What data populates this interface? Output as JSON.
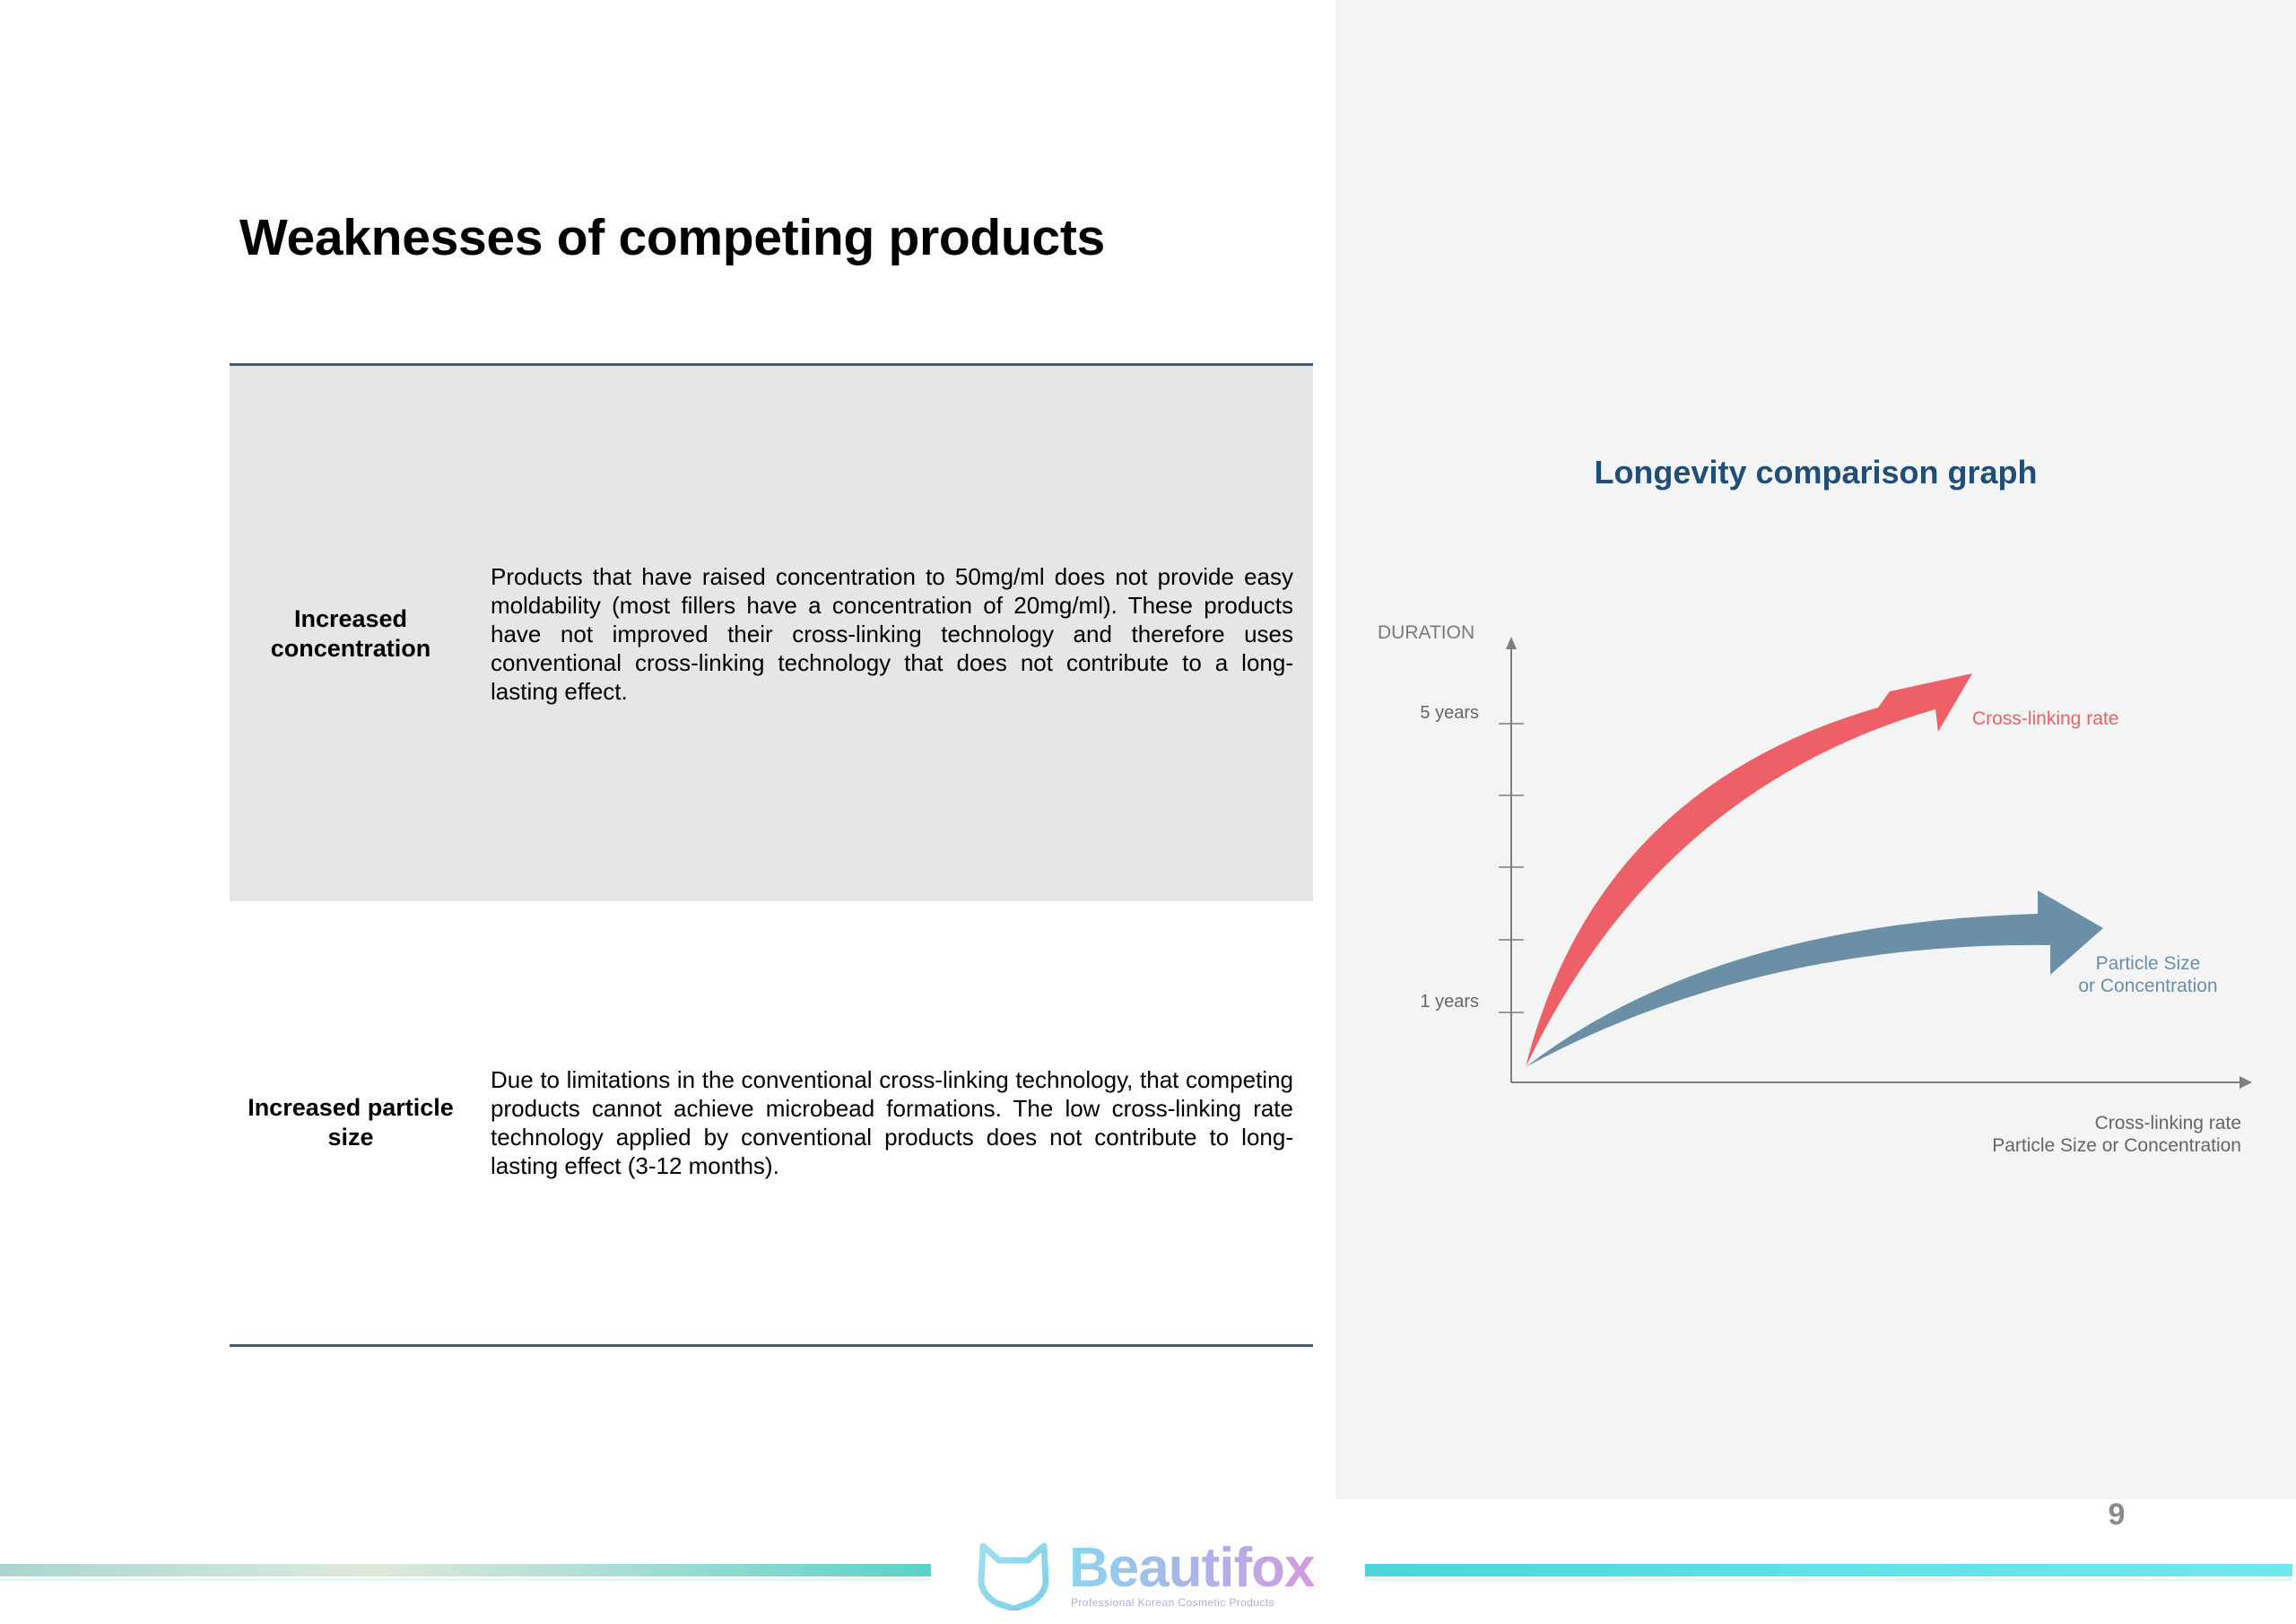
{
  "page": {
    "title": "Weaknesses of competing products",
    "page_number": "9"
  },
  "table": {
    "rows": [
      {
        "label": "Increased concentration",
        "description": "Products that have raised concentration to 50mg/ml does not provide easy moldability (most fillers have a concentration of 20mg/ml). These products have not improved their cross-linking technology and therefore uses conventional cross-linking technology that does not contribute to a long-lasting effect."
      },
      {
        "label": "Increased particle size",
        "description": "Due to limitations in the conventional cross-linking technology, that competing products cannot achieve microbead formations. The low cross-linking rate technology applied by conventional products does not contribute to long-lasting effect (3-12 months)."
      }
    ]
  },
  "chart_data": {
    "type": "line",
    "title": "Longevity comparison graph",
    "ylabel": "DURATION",
    "xlabel": [
      "Cross-linking rate",
      "Particle Size or Concentration"
    ],
    "y_ticks": [
      {
        "label": "5 years"
      },
      {
        "label": ""
      },
      {
        "label": ""
      },
      {
        "label": ""
      },
      {
        "label": "1 years"
      }
    ],
    "series": [
      {
        "name": "Cross-linking rate",
        "color": "#ee6068",
        "shape": "rising-curve-arrow",
        "end_level": "above 5 years"
      },
      {
        "name": "Particle Size or Concentration",
        "color": "#6a8fa6",
        "shape": "shallow-curve-arrow",
        "end_level": "between 1 and 2 years"
      }
    ],
    "axis_color": "#7f7f7f"
  },
  "footer": {
    "logo_text": "Beautifox",
    "logo_tagline": "Professional Korean Cosmetic Products",
    "logo_icon": "fox-head-icon"
  }
}
